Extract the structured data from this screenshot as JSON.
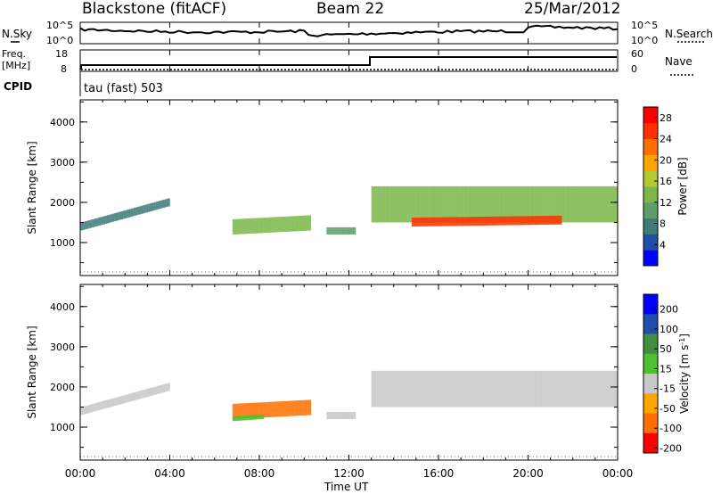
{
  "header": {
    "station": "Blackstone (fitACF)",
    "beam": "Beam 22",
    "date": "25/Mar/2012"
  },
  "summary": {
    "nsky_label": "N.Sky",
    "nsearch_label": "N.Search",
    "noise_ticks": [
      "10^5",
      "10^0"
    ],
    "freq_label_1": "Freq.",
    "freq_label_2": "[MHz]",
    "freq_ticks": [
      "18",
      "8"
    ],
    "nave_label": "Nave",
    "nave_ticks": [
      "60",
      "0"
    ],
    "cpid_label": "CPID",
    "cpid_text": "tau (fast) 503"
  },
  "x_ticks": [
    "00:00",
    "04:00",
    "08:00",
    "12:00",
    "16:00",
    "20:00",
    "00:00"
  ],
  "xlabel": "Time UT",
  "colors": {
    "power": [
      "#0000ff",
      "#1f4ea8",
      "#3f7b7b",
      "#5e9e6a",
      "#7cb84a",
      "#b4c832",
      "#ffa500",
      "#ff7000",
      "#ff3000",
      "#ff0000"
    ],
    "velocity": [
      "#0000ff",
      "#1f4ea8",
      "#3f8f3f",
      "#4fbf30",
      "#c8c8c8",
      "#ffa500",
      "#ff7000",
      "#ff0000"
    ]
  },
  "chart_data": [
    {
      "type": "heatmap",
      "title": "Power [dB]",
      "xlabel": "Time UT",
      "ylabel": "Slant Range [km]",
      "xlim": [
        0,
        24
      ],
      "ylim": [
        180,
        4550
      ],
      "y_ticks": [
        1000,
        2000,
        3000,
        4000
      ],
      "colorbar": {
        "label": "Power [dB]",
        "ticks": [
          4,
          8,
          12,
          16,
          20,
          24,
          28
        ],
        "range": [
          0,
          30
        ]
      },
      "regions": [
        {
          "name": "dawn_band",
          "t": [
            0.0,
            4.0
          ],
          "r_start": [
            1300,
            1900
          ],
          "width": 200,
          "value": 8
        },
        {
          "name": "morning_patch",
          "t": [
            6.8,
            10.3
          ],
          "r_start": [
            1200,
            1300
          ],
          "width": 380,
          "value": 14
        },
        {
          "name": "noon_band",
          "t": [
            11.0,
            12.3
          ],
          "r_start": [
            1200,
            1200
          ],
          "width": 180,
          "value": 10
        },
        {
          "name": "afternoon_echo",
          "t": [
            13.0,
            24.0
          ],
          "r_start": [
            1500,
            1500
          ],
          "width": 900,
          "value": 14
        },
        {
          "name": "peak_core",
          "t": [
            14.8,
            21.5
          ],
          "r_start": [
            1400,
            1450
          ],
          "width": 220,
          "value": 26
        }
      ]
    },
    {
      "type": "heatmap",
      "title": "Velocity [m s-1]",
      "xlabel": "Time UT",
      "ylabel": "Slant Range [km]",
      "xlim": [
        0,
        24
      ],
      "ylim": [
        180,
        4550
      ],
      "y_ticks": [
        1000,
        2000,
        3000,
        4000
      ],
      "colorbar": {
        "label": "Velocity [m s",
        "label_sup": "-1",
        "label_end": "]",
        "ticks": [
          200,
          100,
          50,
          15,
          -15,
          -50,
          -100,
          -200
        ]
      },
      "regions": [
        {
          "name": "dawn_band",
          "t": [
            0.0,
            4.0
          ],
          "r_start": [
            1300,
            1900
          ],
          "width": 200,
          "value": 0
        },
        {
          "name": "morning_patch",
          "t": [
            6.8,
            10.3
          ],
          "r_start": [
            1200,
            1300
          ],
          "width": 380,
          "value": -60
        },
        {
          "name": "morning_green",
          "t": [
            6.8,
            8.2
          ],
          "r_start": [
            1150,
            1200
          ],
          "width": 120,
          "value": 40
        },
        {
          "name": "noon_band",
          "t": [
            11.0,
            12.3
          ],
          "r_start": [
            1200,
            1200
          ],
          "width": 180,
          "value": 0
        },
        {
          "name": "afternoon_echo",
          "t": [
            13.0,
            24.0
          ],
          "r_start": [
            1500,
            1500
          ],
          "width": 900,
          "value": 0
        }
      ]
    }
  ]
}
